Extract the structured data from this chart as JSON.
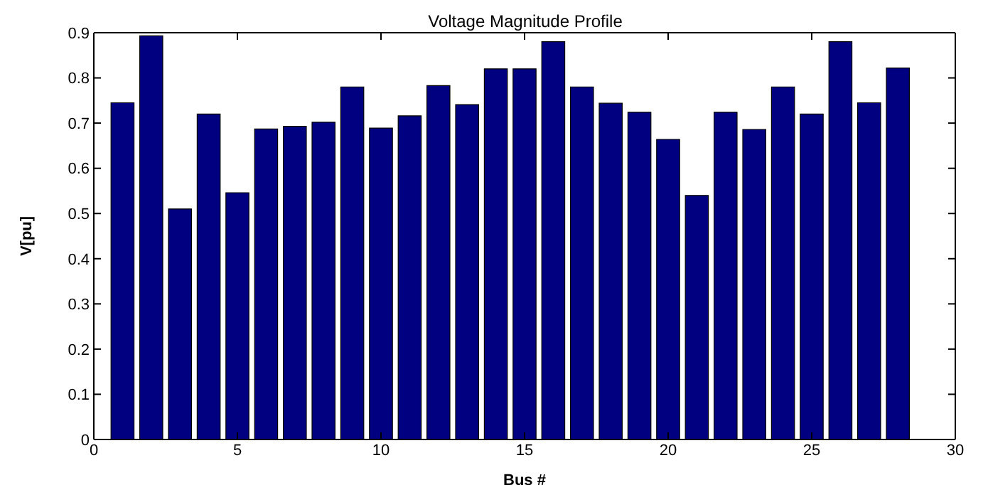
{
  "chart_data": {
    "type": "bar",
    "title": "Voltage Magnitude Profile",
    "xlabel": "Bus #",
    "ylabel": "V[pu]",
    "x": [
      1,
      2,
      3,
      4,
      5,
      6,
      7,
      8,
      9,
      10,
      11,
      12,
      13,
      14,
      15,
      16,
      17,
      18,
      19,
      20,
      21,
      22,
      23,
      24,
      25,
      26,
      27,
      28
    ],
    "values": [
      0.745,
      0.893,
      0.51,
      0.72,
      0.546,
      0.687,
      0.693,
      0.702,
      0.78,
      0.689,
      0.716,
      0.783,
      0.741,
      0.82,
      0.82,
      0.88,
      0.78,
      0.744,
      0.724,
      0.664,
      0.54,
      0.724,
      0.686,
      0.78,
      0.72,
      0.88,
      0.745,
      0.822
    ],
    "color": "#000080",
    "xlim": [
      0,
      30
    ],
    "xticks": [
      0,
      5,
      10,
      15,
      20,
      25,
      30
    ],
    "ylim": [
      0,
      0.9
    ],
    "yticks": [
      0,
      0.1,
      0.2,
      0.3,
      0.4,
      0.5,
      0.6,
      0.7,
      0.8,
      0.9
    ],
    "grid": false
  }
}
